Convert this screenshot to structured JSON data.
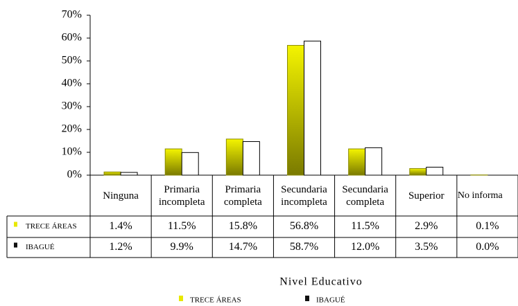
{
  "chart_data": {
    "type": "bar",
    "x_label": "Nivel Educativo",
    "categories": [
      "Ninguna",
      "Primaria incompleta",
      "Primaria completa",
      "Secundaria incompleta",
      "Secundaria completa",
      "Superior",
      "No informa"
    ],
    "series": [
      {
        "name": "TRECE ÁREAS",
        "color": "#e8e800",
        "values": [
          1.4,
          11.5,
          15.8,
          56.8,
          11.5,
          2.9,
          0.1
        ],
        "value_labels": [
          "1.4%",
          "11.5%",
          "15.8%",
          "56.8%",
          "11.5%",
          "2.9%",
          "0.1%"
        ]
      },
      {
        "name": "IBAGUÉ",
        "color": "#ffffff",
        "values": [
          1.2,
          9.9,
          14.7,
          58.7,
          12.0,
          3.5,
          0.0
        ],
        "value_labels": [
          "1.2%",
          "9.9%",
          "14.7%",
          "58.7%",
          "12.0%",
          "3.5%",
          "0.0%"
        ]
      }
    ],
    "ylim": [
      0,
      70
    ],
    "yticks": [
      {
        "value": 0,
        "label": "0%"
      },
      {
        "value": 10,
        "label": "10%"
      },
      {
        "value": 20,
        "label": "20%"
      },
      {
        "value": 30,
        "label": "30%"
      },
      {
        "value": 40,
        "label": "40%"
      },
      {
        "value": 50,
        "label": "50%"
      },
      {
        "value": 60,
        "label": "60%"
      },
      {
        "value": 70,
        "label": "70%"
      }
    ]
  }
}
